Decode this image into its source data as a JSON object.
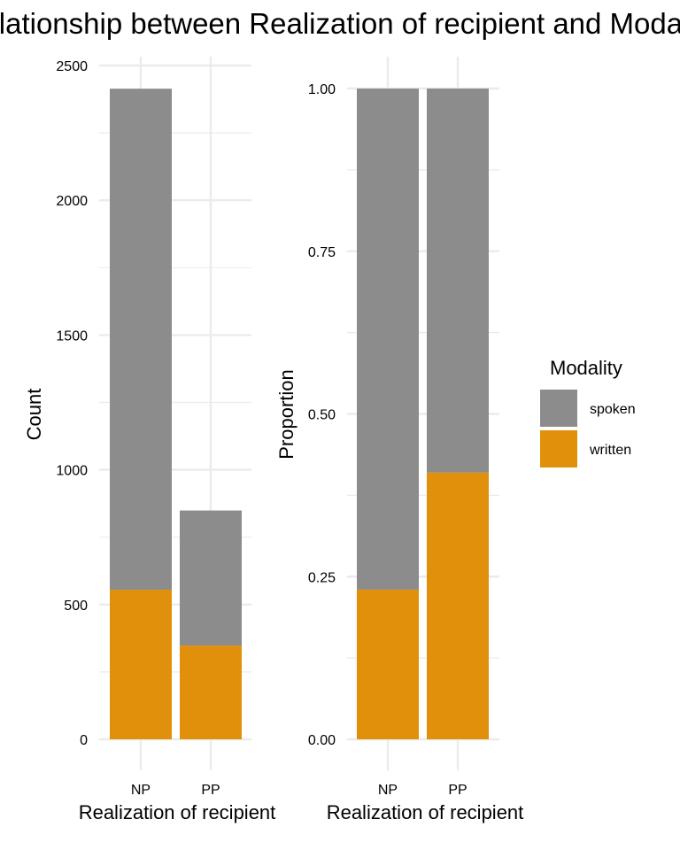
{
  "title": "Relationship between Realization of recipient and Modality",
  "colors": {
    "spoken": "#8c8c8c",
    "written": "#e0900b",
    "grid": "#ebebeb"
  },
  "legend": {
    "title": "Modality",
    "placement": "right",
    "items": [
      {
        "label": "spoken",
        "color": "#8c8c8c"
      },
      {
        "label": "written",
        "color": "#e0900b"
      }
    ]
  },
  "chart_data": [
    {
      "type": "bar",
      "stacked": true,
      "xlabel": "Realization of recipient",
      "ylabel": "Count",
      "categories": [
        "NP",
        "PP"
      ],
      "ylim": [
        0,
        2500
      ],
      "yticks": [
        0,
        500,
        1000,
        1500,
        2000,
        2500
      ],
      "ytick_labels": [
        "0",
        "500",
        "1000",
        "1500",
        "2000",
        "2500"
      ],
      "grid": true,
      "series": [
        {
          "name": "written",
          "values": [
            555,
            348
          ]
        },
        {
          "name": "spoken",
          "values": [
            1859,
            501
          ]
        }
      ]
    },
    {
      "type": "bar",
      "stacked": true,
      "xlabel": "Realization of recipient",
      "ylabel": "Proportion",
      "categories": [
        "NP",
        "PP"
      ],
      "ylim": [
        0,
        1
      ],
      "yticks": [
        0,
        0.25,
        0.5,
        0.75,
        1
      ],
      "ytick_labels": [
        "0.00",
        "0.25",
        "0.50",
        "0.75",
        "1.00"
      ],
      "grid": true,
      "series": [
        {
          "name": "written",
          "values": [
            0.23,
            0.41
          ]
        },
        {
          "name": "spoken",
          "values": [
            0.77,
            0.59
          ]
        }
      ]
    }
  ]
}
